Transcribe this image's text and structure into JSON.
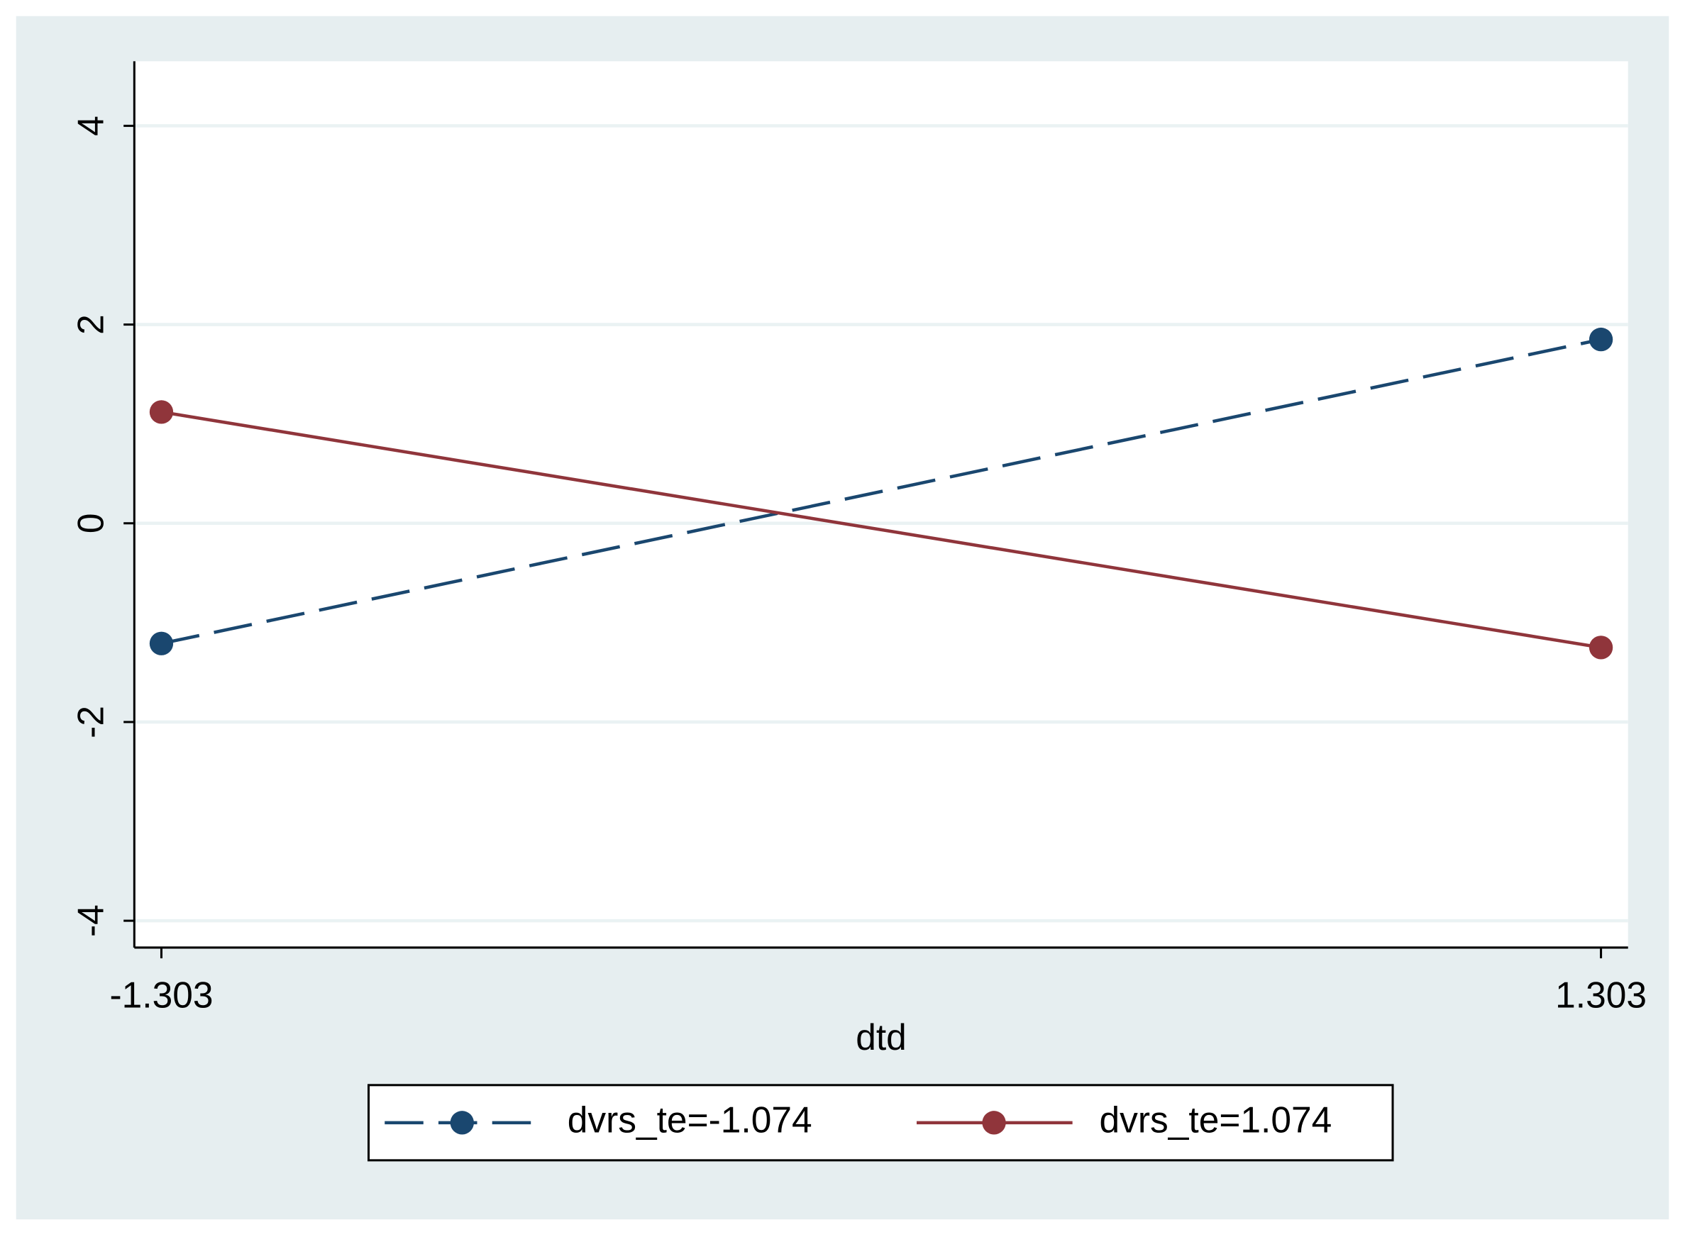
{
  "chart_data": {
    "type": "line",
    "x_label": "dtd",
    "x": [
      -1.303,
      1.303
    ],
    "series": [
      {
        "name": "dvrs_te=-1.074",
        "color": "#1a476f",
        "dash": true,
        "values": [
          -1.21,
          1.85
        ]
      },
      {
        "name": "dvrs_te=1.074",
        "color": "#90353b",
        "dash": false,
        "values": [
          1.12,
          -1.25
        ]
      }
    ],
    "xlim": [
      -1.352,
      1.352
    ],
    "xticks": [
      -1.303,
      1.303
    ],
    "ylim": [
      -4.27,
      4.65
    ],
    "yticks": [
      -4,
      -2,
      0,
      2,
      4
    ],
    "grid": true,
    "legend": "bottom"
  }
}
